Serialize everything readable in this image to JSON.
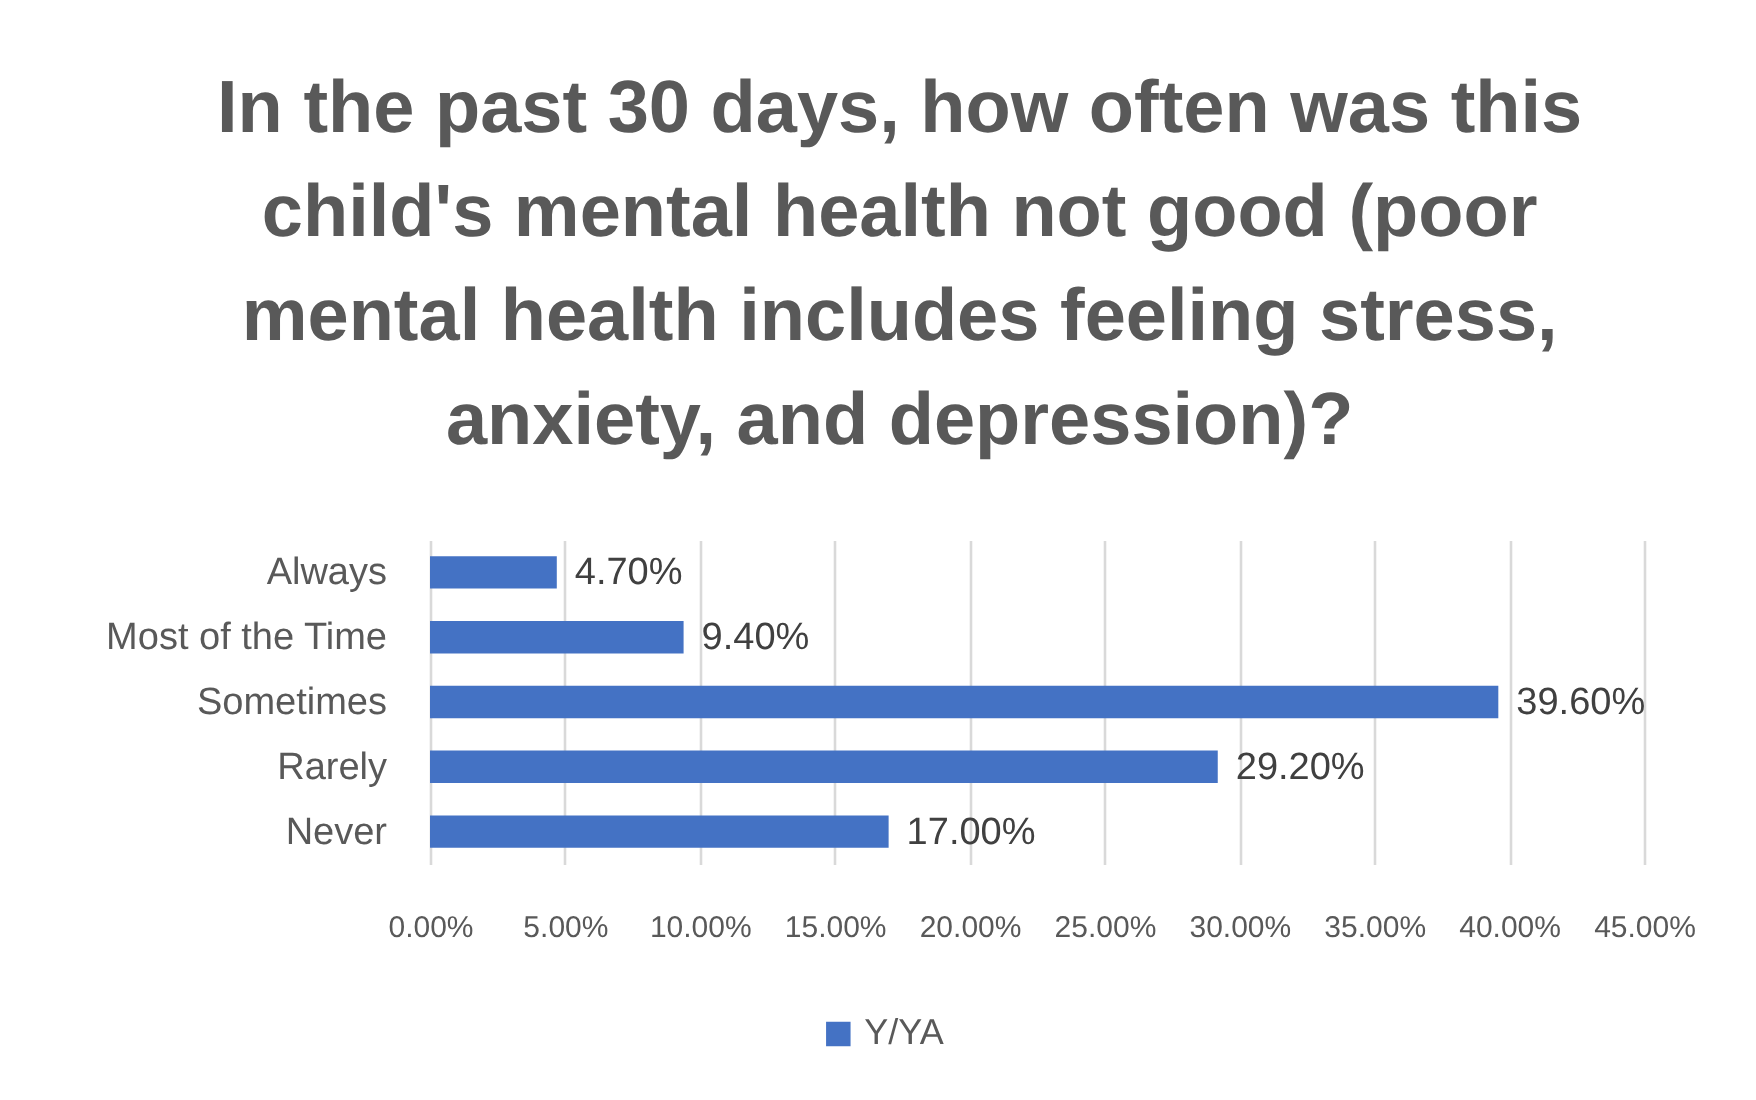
{
  "chart_data": {
    "type": "bar",
    "orientation": "horizontal",
    "title": "In the past 30 days, how often was this child's mental health not good (poor mental health includes feeling stress, anxiety, and depression)?",
    "categories": [
      "Always",
      "Most of the Time",
      "Sometimes",
      "Rarely",
      "Never"
    ],
    "series": [
      {
        "name": "Y/YA",
        "color": "#4472c4",
        "values": [
          4.7,
          9.4,
          39.6,
          29.2,
          17.0
        ],
        "value_labels": [
          "4.70%",
          "9.40%",
          "39.60%",
          "29.20%",
          "17.00%"
        ]
      }
    ],
    "xlim": [
      0,
      45
    ],
    "xticks": [
      {
        "value": 0,
        "label": "0.00%"
      },
      {
        "value": 5,
        "label": "5.00%"
      },
      {
        "value": 10,
        "label": "10.00%"
      },
      {
        "value": 15,
        "label": "15.00%"
      },
      {
        "value": 20,
        "label": "20.00%"
      },
      {
        "value": 25,
        "label": "25.00%"
      },
      {
        "value": 30,
        "label": "30.00%"
      },
      {
        "value": 35,
        "label": "35.00%"
      },
      {
        "value": 40,
        "label": "40.00%"
      },
      {
        "value": 45,
        "label": "45.00%"
      }
    ],
    "grid": "x",
    "legend": "bottom"
  }
}
